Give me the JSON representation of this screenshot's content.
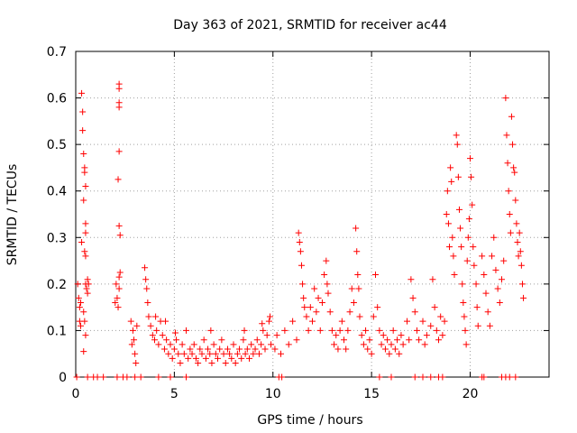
{
  "chart_data": {
    "type": "scatter",
    "title": "Day 363 of 2021, SRMTID for receiver ac44",
    "xlabel": "GPS time / hours",
    "ylabel": "SRMTID / TECUs",
    "xlim": [
      0,
      24
    ],
    "ylim": [
      0,
      0.7
    ],
    "xticks": [
      0,
      5,
      10,
      15,
      20
    ],
    "yticks": [
      0,
      0.1,
      0.2,
      0.3,
      0.4,
      0.5,
      0.6,
      0.7
    ],
    "grid": true,
    "marker": "+",
    "color": "#ff0000",
    "series": [
      {
        "name": "SRMTID",
        "points": [
          [
            0.1,
            0.2
          ],
          [
            0.15,
            0.17
          ],
          [
            0.2,
            0.15
          ],
          [
            0.25,
            0.11
          ],
          [
            0.3,
            0.61
          ],
          [
            0.35,
            0.57
          ],
          [
            0.35,
            0.53
          ],
          [
            0.4,
            0.48
          ],
          [
            0.45,
            0.45
          ],
          [
            0.45,
            0.44
          ],
          [
            0.5,
            0.41
          ],
          [
            0.4,
            0.38
          ],
          [
            0.5,
            0.33
          ],
          [
            0.5,
            0.31
          ],
          [
            0.3,
            0.29
          ],
          [
            0.45,
            0.27
          ],
          [
            0.5,
            0.26
          ],
          [
            0.5,
            0.2
          ],
          [
            0.55,
            0.19
          ],
          [
            0.6,
            0.18
          ],
          [
            0.4,
            0.14
          ],
          [
            0.45,
            0.12
          ],
          [
            0.5,
            0.09
          ],
          [
            0.4,
            0.055
          ],
          [
            0.6,
            0.21
          ],
          [
            0.65,
            0.2
          ],
          [
            0.2,
            0.12
          ],
          [
            0.25,
            0.16
          ],
          [
            2.05,
            0.2
          ],
          [
            2.1,
            0.17
          ],
          [
            2.15,
            0.15
          ],
          [
            2.2,
            0.63
          ],
          [
            2.2,
            0.62
          ],
          [
            2.2,
            0.59
          ],
          [
            2.2,
            0.58
          ],
          [
            2.2,
            0.485
          ],
          [
            2.15,
            0.425
          ],
          [
            2.2,
            0.325
          ],
          [
            2.25,
            0.305
          ],
          [
            2.25,
            0.225
          ],
          [
            2.2,
            0.215
          ],
          [
            2.2,
            0.19
          ],
          [
            2.0,
            0.16
          ],
          [
            2.8,
            0.12
          ],
          [
            2.9,
            0.1
          ],
          [
            2.95,
            0.08
          ],
          [
            3.0,
            0.05
          ],
          [
            3.05,
            0.03
          ],
          [
            3.1,
            0.11
          ],
          [
            2.85,
            0.07
          ],
          [
            3.5,
            0.235
          ],
          [
            3.55,
            0.21
          ],
          [
            3.6,
            0.19
          ],
          [
            3.65,
            0.16
          ],
          [
            3.7,
            0.13
          ],
          [
            3.8,
            0.11
          ],
          [
            3.9,
            0.09
          ],
          [
            4.0,
            0.08
          ],
          [
            4.1,
            0.1
          ],
          [
            4.2,
            0.07
          ],
          [
            4.3,
            0.12
          ],
          [
            4.4,
            0.09
          ],
          [
            4.5,
            0.06
          ],
          [
            4.6,
            0.08
          ],
          [
            4.7,
            0.05
          ],
          [
            4.8,
            0.07
          ],
          [
            4.9,
            0.04
          ],
          [
            5.0,
            0.06
          ],
          [
            5.1,
            0.08
          ],
          [
            5.2,
            0.05
          ],
          [
            5.3,
            0.03
          ],
          [
            5.4,
            0.07
          ],
          [
            5.5,
            0.05
          ],
          [
            5.6,
            0.1
          ],
          [
            5.7,
            0.04
          ],
          [
            5.8,
            0.06
          ],
          [
            5.9,
            0.05
          ],
          [
            6.0,
            0.07
          ],
          [
            6.1,
            0.04
          ],
          [
            6.2,
            0.03
          ],
          [
            6.3,
            0.06
          ],
          [
            6.4,
            0.05
          ],
          [
            6.5,
            0.08
          ],
          [
            6.6,
            0.04
          ],
          [
            6.7,
            0.06
          ],
          [
            6.8,
            0.05
          ],
          [
            6.9,
            0.03
          ],
          [
            7.0,
            0.07
          ],
          [
            7.1,
            0.05
          ],
          [
            7.2,
            0.04
          ],
          [
            7.3,
            0.06
          ],
          [
            7.4,
            0.08
          ],
          [
            7.5,
            0.05
          ],
          [
            7.6,
            0.03
          ],
          [
            7.7,
            0.06
          ],
          [
            7.8,
            0.05
          ],
          [
            7.9,
            0.04
          ],
          [
            8.0,
            0.07
          ],
          [
            8.1,
            0.03
          ],
          [
            8.2,
            0.05
          ],
          [
            8.3,
            0.06
          ],
          [
            8.4,
            0.04
          ],
          [
            8.5,
            0.08
          ],
          [
            8.6,
            0.05
          ],
          [
            8.7,
            0.06
          ],
          [
            8.8,
            0.04
          ],
          [
            8.9,
            0.07
          ],
          [
            9.0,
            0.05
          ],
          [
            9.1,
            0.06
          ],
          [
            9.2,
            0.08
          ],
          [
            9.3,
            0.05
          ],
          [
            9.4,
            0.07
          ],
          [
            9.5,
            0.1
          ],
          [
            9.6,
            0.06
          ],
          [
            9.7,
            0.09
          ],
          [
            9.8,
            0.12
          ],
          [
            9.9,
            0.07
          ],
          [
            4.05,
            0.13
          ],
          [
            4.55,
            0.12
          ],
          [
            5.05,
            0.095
          ],
          [
            6.85,
            0.1
          ],
          [
            8.55,
            0.1
          ],
          [
            9.45,
            0.115
          ],
          [
            9.85,
            0.13
          ],
          [
            10.1,
            0.06
          ],
          [
            10.2,
            0.09
          ],
          [
            10.4,
            0.05
          ],
          [
            10.6,
            0.1
          ],
          [
            10.8,
            0.07
          ],
          [
            11.0,
            0.12
          ],
          [
            11.2,
            0.08
          ],
          [
            11.3,
            0.31
          ],
          [
            11.35,
            0.29
          ],
          [
            11.4,
            0.27
          ],
          [
            11.45,
            0.24
          ],
          [
            11.5,
            0.2
          ],
          [
            11.55,
            0.17
          ],
          [
            11.6,
            0.15
          ],
          [
            11.7,
            0.13
          ],
          [
            11.8,
            0.1
          ],
          [
            11.9,
            0.15
          ],
          [
            12.0,
            0.12
          ],
          [
            12.1,
            0.19
          ],
          [
            12.2,
            0.14
          ],
          [
            12.3,
            0.17
          ],
          [
            12.4,
            0.1
          ],
          [
            12.5,
            0.16
          ],
          [
            12.6,
            0.22
          ],
          [
            12.7,
            0.25
          ],
          [
            12.75,
            0.2
          ],
          [
            12.8,
            0.18
          ],
          [
            12.9,
            0.14
          ],
          [
            13.0,
            0.1
          ],
          [
            13.1,
            0.07
          ],
          [
            13.2,
            0.09
          ],
          [
            13.3,
            0.06
          ],
          [
            13.4,
            0.1
          ],
          [
            13.5,
            0.12
          ],
          [
            13.6,
            0.08
          ],
          [
            13.7,
            0.06
          ],
          [
            13.8,
            0.1
          ],
          [
            13.9,
            0.14
          ],
          [
            14.0,
            0.19
          ],
          [
            14.1,
            0.16
          ],
          [
            14.2,
            0.32
          ],
          [
            14.25,
            0.27
          ],
          [
            14.3,
            0.22
          ],
          [
            14.35,
            0.19
          ],
          [
            14.4,
            0.13
          ],
          [
            14.5,
            0.09
          ],
          [
            14.6,
            0.07
          ],
          [
            14.7,
            0.1
          ],
          [
            14.8,
            0.06
          ],
          [
            14.9,
            0.08
          ],
          [
            15.0,
            0.05
          ],
          [
            15.1,
            0.13
          ],
          [
            15.2,
            0.22
          ],
          [
            15.3,
            0.15
          ],
          [
            15.4,
            0.1
          ],
          [
            15.5,
            0.07
          ],
          [
            15.6,
            0.09
          ],
          [
            15.7,
            0.06
          ],
          [
            15.8,
            0.08
          ],
          [
            15.9,
            0.05
          ],
          [
            16.0,
            0.07
          ],
          [
            16.1,
            0.1
          ],
          [
            16.2,
            0.06
          ],
          [
            16.3,
            0.08
          ],
          [
            16.4,
            0.05
          ],
          [
            16.5,
            0.09
          ],
          [
            16.6,
            0.07
          ],
          [
            16.8,
            0.12
          ],
          [
            16.9,
            0.08
          ],
          [
            17.0,
            0.21
          ],
          [
            17.1,
            0.17
          ],
          [
            17.2,
            0.14
          ],
          [
            17.3,
            0.1
          ],
          [
            17.4,
            0.08
          ],
          [
            17.6,
            0.12
          ],
          [
            17.7,
            0.07
          ],
          [
            17.8,
            0.09
          ],
          [
            18.0,
            0.11
          ],
          [
            18.1,
            0.21
          ],
          [
            18.2,
            0.15
          ],
          [
            18.3,
            0.1
          ],
          [
            18.4,
            0.08
          ],
          [
            18.5,
            0.13
          ],
          [
            18.6,
            0.09
          ],
          [
            18.7,
            0.12
          ],
          [
            18.8,
            0.35
          ],
          [
            18.85,
            0.4
          ],
          [
            18.9,
            0.33
          ],
          [
            18.95,
            0.28
          ],
          [
            19.0,
            0.45
          ],
          [
            19.05,
            0.42
          ],
          [
            19.1,
            0.3
          ],
          [
            19.15,
            0.26
          ],
          [
            19.2,
            0.22
          ],
          [
            19.3,
            0.52
          ],
          [
            19.35,
            0.5
          ],
          [
            19.4,
            0.43
          ],
          [
            19.45,
            0.36
          ],
          [
            19.5,
            0.32
          ],
          [
            19.55,
            0.28
          ],
          [
            19.6,
            0.2
          ],
          [
            19.65,
            0.16
          ],
          [
            19.7,
            0.13
          ],
          [
            19.75,
            0.1
          ],
          [
            19.8,
            0.07
          ],
          [
            19.85,
            0.25
          ],
          [
            19.9,
            0.3
          ],
          [
            19.95,
            0.34
          ],
          [
            20.0,
            0.47
          ],
          [
            20.05,
            0.43
          ],
          [
            20.1,
            0.37
          ],
          [
            20.15,
            0.28
          ],
          [
            20.2,
            0.24
          ],
          [
            20.3,
            0.2
          ],
          [
            20.35,
            0.15
          ],
          [
            20.4,
            0.11
          ],
          [
            20.6,
            0.26
          ],
          [
            20.7,
            0.22
          ],
          [
            20.8,
            0.18
          ],
          [
            20.9,
            0.14
          ],
          [
            21.0,
            0.11
          ],
          [
            21.1,
            0.26
          ],
          [
            21.2,
            0.3
          ],
          [
            21.3,
            0.23
          ],
          [
            21.4,
            0.19
          ],
          [
            21.5,
            0.16
          ],
          [
            21.6,
            0.21
          ],
          [
            21.7,
            0.25
          ],
          [
            21.8,
            0.6
          ],
          [
            21.85,
            0.52
          ],
          [
            21.9,
            0.46
          ],
          [
            21.95,
            0.4
          ],
          [
            22.0,
            0.35
          ],
          [
            22.05,
            0.31
          ],
          [
            22.1,
            0.56
          ],
          [
            22.15,
            0.5
          ],
          [
            22.2,
            0.45
          ],
          [
            22.25,
            0.44
          ],
          [
            22.3,
            0.38
          ],
          [
            22.35,
            0.33
          ],
          [
            22.4,
            0.29
          ],
          [
            22.45,
            0.26
          ],
          [
            22.5,
            0.31
          ],
          [
            22.55,
            0.27
          ],
          [
            22.6,
            0.24
          ],
          [
            22.65,
            0.2
          ],
          [
            22.7,
            0.17
          ]
        ],
        "zero_markers_hours": [
          0.05,
          0.6,
          0.9,
          1.1,
          1.4,
          2.1,
          2.4,
          2.6,
          3.0,
          3.3,
          4.2,
          4.8,
          5.6,
          10.3,
          10.45,
          15.4,
          16.0,
          17.2,
          17.6,
          18.0,
          18.4,
          18.6,
          20.6,
          20.7,
          21.6,
          21.8,
          22.0,
          22.3
        ]
      }
    ]
  }
}
